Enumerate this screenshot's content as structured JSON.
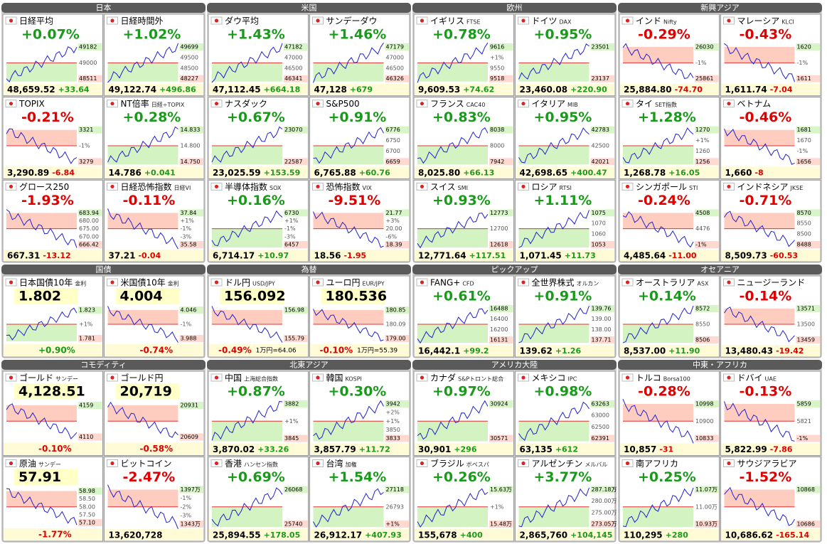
{
  "sections": [
    {
      "title": "日本",
      "cards": [
        {
          "name": "日経平均",
          "pct": "+0.07%",
          "price": "48,659.52",
          "chg": "+33.64",
          "hi": "49182",
          "ticks": [
            "49000"
          ],
          "lo": "48511"
        },
        {
          "name": "日経時間外",
          "pct": "+1.02%",
          "price": "49,122.74",
          "chg": "+496.86",
          "hi": "49699",
          "ticks": [
            "49500",
            "48500"
          ],
          "lo": "48227"
        },
        {
          "name": "TOPIX",
          "pct": "-0.21%",
          "price": "3,290.89",
          "chg": "-6.84",
          "hi": "3321",
          "ticks": [
            "-1%"
          ],
          "lo": "3279"
        },
        {
          "name": "NT倍率",
          "sub": "日経÷TOPIX",
          "pct": "+0.28%",
          "price": "14.786",
          "chg": "+0.041",
          "hi": "14.833",
          "ticks": [
            "14.800"
          ],
          "lo": "14.750"
        },
        {
          "name": "グロース250",
          "pct": "-1.93%",
          "price": "667.31",
          "chg": "-13.12",
          "hi": "683.94",
          "ticks": [
            "680.00",
            "675.00",
            "670.00"
          ],
          "lo": "666.42"
        },
        {
          "name": "日経恐怖指数",
          "sub": "日経VI",
          "pct": "-0.11%",
          "price": "37.21",
          "chg": "-0.04",
          "hi": "37.84",
          "ticks": [
            "+1%",
            "-1%",
            "-3%"
          ],
          "lo": "35.58"
        }
      ]
    },
    {
      "title": "米国",
      "cards": [
        {
          "name": "ダウ平均",
          "pct": "+1.43%",
          "price": "47,112.45",
          "chg": "+664.18",
          "hi": "47182",
          "ticks": [
            "47000",
            "46500"
          ],
          "lo": "46341"
        },
        {
          "name": "サンデーダウ",
          "pct": "+1.46%",
          "price": "47,128",
          "chg": "+679",
          "hi": "47179",
          "ticks": [
            "47000",
            "46500"
          ],
          "lo": "46326"
        },
        {
          "name": "ナスダック",
          "pct": "+0.67%",
          "price": "23,025.59",
          "chg": "+153.59",
          "hi": "23070",
          "ticks": [],
          "lo": "22587"
        },
        {
          "name": "S&P500",
          "pct": "+0.91%",
          "price": "6,765.88",
          "chg": "+60.76",
          "hi": "6776",
          "ticks": [
            "6750",
            "6700"
          ],
          "lo": "6659"
        },
        {
          "name": "半導体指数",
          "sub": "SOX",
          "pct": "+0.16%",
          "price": "6,714.17",
          "chg": "+10.97",
          "hi": "6730",
          "ticks": [
            "+1%",
            "-1%",
            "-3%"
          ],
          "lo": "6457"
        },
        {
          "name": "恐怖指数",
          "sub": "VIX",
          "pct": "-9.51%",
          "price": "18.56",
          "chg": "-1.95",
          "hi": "21.77",
          "ticks": [
            "+3%",
            "20.00",
            "-6%"
          ],
          "lo": "18.39"
        }
      ]
    },
    {
      "title": "欧州",
      "cards": [
        {
          "name": "イギリス",
          "sub": "FTSE",
          "pct": "+0.78%",
          "price": "9,609.53",
          "chg": "+74.62",
          "hi": "9616",
          "ticks": [
            "+1%",
            "9550"
          ],
          "lo": "9518"
        },
        {
          "name": "ドイツ",
          "sub": "DAX",
          "pct": "+0.95%",
          "price": "23,460.08",
          "chg": "+220.90",
          "hi": "23501",
          "ticks": [],
          "lo": "23137"
        },
        {
          "name": "フランス",
          "sub": "CAC40",
          "pct": "+0.83%",
          "price": "8,025.80",
          "chg": "+66.13",
          "hi": "8038",
          "ticks": [
            "8000"
          ],
          "lo": "7942"
        },
        {
          "name": "イタリア",
          "sub": "MIB",
          "pct": "+0.95%",
          "price": "42,698.65",
          "chg": "+400.47",
          "hi": "42783",
          "ticks": [
            "42500"
          ],
          "lo": "42021"
        },
        {
          "name": "スイス",
          "sub": "SMI",
          "pct": "+0.93%",
          "price": "12,771.64",
          "chg": "+117.51",
          "hi": "12773",
          "ticks": [
            "12700"
          ],
          "lo": "12618"
        },
        {
          "name": "ロシア",
          "sub": "RTSI",
          "pct": "+1.11%",
          "price": "1,071.45",
          "chg": "+11.73",
          "hi": "1075",
          "ticks": [
            "1070",
            "1060"
          ],
          "lo": "1053"
        }
      ]
    },
    {
      "title": "新興アジア",
      "cards": [
        {
          "name": "インド",
          "sub": "Nifty",
          "pct": "-0.29%",
          "price": "25,884.80",
          "chg": "-74.70",
          "hi": "26030",
          "ticks": [
            "-1%"
          ],
          "lo": "25861"
        },
        {
          "name": "マレーシア",
          "sub": "KLCI",
          "pct": "-0.43%",
          "price": "1,611.74",
          "chg": "-7.04",
          "hi": "1620",
          "ticks": [
            "-1%"
          ],
          "lo": "1611"
        },
        {
          "name": "タイ",
          "sub": "SET指数",
          "pct": "+1.28%",
          "price": "1,268.78",
          "chg": "+16.05",
          "hi": "1270",
          "ticks": [
            "+1%",
            "1260"
          ],
          "lo": "1256"
        },
        {
          "name": "ベトナム",
          "pct": "-0.46%",
          "price": "1,660",
          "chg": "-8",
          "hi": "1681",
          "ticks": [
            "1670",
            "-1%"
          ],
          "lo": "1656"
        },
        {
          "name": "シンガポール",
          "sub": "STI",
          "pct": "-0.24%",
          "price": "4,485.64",
          "chg": "-11.00",
          "hi": "4508",
          "ticks": [
            "4476"
          ],
          "lo": "-1%"
        },
        {
          "name": "インドネシア",
          "sub": "JKSE",
          "pct": "-0.71%",
          "price": "8,509.73",
          "chg": "-60.53",
          "hi": "8570",
          "ticks": [
            "8550",
            "8500"
          ],
          "lo": "8488"
        }
      ]
    },
    {
      "title": "国債",
      "cards": [
        {
          "name": "日本国債10年",
          "sub": "金利",
          "big": true,
          "price": "1.802",
          "pct": "+0.90%",
          "hi": "1.823",
          "ticks": [
            "+1%"
          ],
          "lo": "1.781"
        },
        {
          "name": "米国債10年",
          "sub": "金利",
          "big": true,
          "price": "4.004",
          "pct": "-0.74%",
          "hi": "4.046",
          "ticks": [
            "-1%"
          ],
          "lo": "3.988"
        }
      ]
    },
    {
      "title": "為替",
      "cards": [
        {
          "name": "ドル円",
          "sub": "USD/JPY",
          "big": true,
          "price": "156.092",
          "pct": "-0.49%",
          "note": "1万円=64.06",
          "hi": "156.98",
          "ticks": [],
          "lo": "155.79"
        },
        {
          "name": "ユーロ円",
          "sub": "EUR/JPY",
          "big": true,
          "price": "180.536",
          "pct": "-0.10%",
          "note": "1万円=55.39",
          "hi": "180.85",
          "ticks": [
            "180.09"
          ],
          "lo": "179.00"
        }
      ]
    },
    {
      "title": "ピックアップ",
      "cards": [
        {
          "name": "FANG+",
          "sub": "CFD",
          "pct": "+0.61%",
          "price": "16,442.1",
          "chg": "+99.2",
          "hi": "16488",
          "ticks": [
            "16400",
            "16200"
          ],
          "lo": "16131"
        },
        {
          "name": "全世界株式",
          "sub": "オルカン",
          "pct": "+0.91%",
          "price": "139.62",
          "chg": "+1.26",
          "hi": "139.76",
          "ticks": [
            "139.00",
            "138.00"
          ],
          "lo": "137.71"
        }
      ]
    },
    {
      "title": "オセアニア",
      "cards": [
        {
          "name": "オーストラリア",
          "sub": "ASX",
          "pct": "+0.14%",
          "price": "8,537.00",
          "chg": "+11.90",
          "hi": "8572",
          "ticks": [
            "8550"
          ],
          "lo": "8506"
        },
        {
          "name": "ニュージーランド",
          "pct": "-0.14%",
          "price": "13,480.43",
          "chg": "-19.42",
          "hi": "13571",
          "ticks": [
            "13500"
          ],
          "lo": "13459"
        }
      ]
    },
    {
      "title": "コモディティ",
      "cards": [
        {
          "name": "ゴールド",
          "sub": "サンデー",
          "big": true,
          "price": "4,128.51",
          "pct": "-0.10%",
          "hi": "4159",
          "ticks": [],
          "lo": "4110"
        },
        {
          "name": "ゴールド円",
          "big": true,
          "price": "20,719",
          "pct": "-0.58%",
          "hi": "20931",
          "ticks": [],
          "lo": "20609"
        },
        {
          "name": "原油",
          "sub": "サンデー",
          "big": true,
          "price": "57.91",
          "pct": "-1.77%",
          "hi": "58.98",
          "ticks": [
            "58.50",
            "58.00",
            "57.50"
          ],
          "lo": "57.10"
        },
        {
          "name": "ビットコイン",
          "pct": "-2.47%",
          "price": "13,620,728",
          "hi": "1397万",
          "ticks": [
            "-1%",
            "-2%",
            "-3%"
          ],
          "lo": "1343万"
        }
      ]
    },
    {
      "title": "北東アジア",
      "cards": [
        {
          "name": "中国",
          "sub": "上海総合指数",
          "pct": "+0.87%",
          "price": "3,870.02",
          "chg": "+33.26",
          "hi": "3882",
          "ticks": [
            "+1%"
          ],
          "lo": "3845"
        },
        {
          "name": "韓国",
          "sub": "KOSPI",
          "pct": "+0.30%",
          "price": "3,857.79",
          "chg": "+11.72",
          "hi": "3942",
          "ticks": [
            "+2%",
            "+1%",
            "3850"
          ],
          "lo": "3833"
        },
        {
          "name": "香港",
          "sub": "ハンセン指数",
          "pct": "+0.69%",
          "price": "25,894.55",
          "chg": "+178.05",
          "hi": "26068",
          "ticks": [],
          "lo": "25740"
        },
        {
          "name": "台湾",
          "sub": "加権",
          "pct": "+1.54%",
          "price": "26,912.17",
          "chg": "+407.93",
          "hi": "27118",
          "ticks": [
            "26793"
          ],
          "lo": "+1%"
        }
      ]
    },
    {
      "title": "アメリカ大陸",
      "cards": [
        {
          "name": "カナダ",
          "sub": "S&Pトロント総合",
          "pct": "+0.97%",
          "price": "30,901",
          "chg": "+296",
          "hi": "30924",
          "ticks": [],
          "lo": "30571"
        },
        {
          "name": "メキシコ",
          "sub": "IPC",
          "pct": "+0.98%",
          "price": "63,135",
          "chg": "+612",
          "hi": "63263",
          "ticks": [
            "63000",
            "62500"
          ],
          "lo": "62391"
        },
        {
          "name": "ブラジル",
          "sub": "ボベスパ",
          "pct": "+0.26%",
          "price": "155,678",
          "chg": "+400",
          "hi": "15.63万",
          "ticks": [
            "+1%"
          ],
          "lo": "15.48万"
        },
        {
          "name": "アルゼンチン",
          "sub": "メルバル",
          "pct": "+3.77%",
          "price": "2,865,760",
          "chg": "+104,145",
          "hi": "287.18万",
          "ticks": [
            "280.00万",
            "275.00万"
          ],
          "lo": "273.05万"
        }
      ]
    },
    {
      "title": "中東・アフリカ",
      "cards": [
        {
          "name": "トルコ",
          "sub": "Borsa100",
          "pct": "-0.28%",
          "price": "10,857",
          "chg": "-31",
          "hi": "10998",
          "ticks": [
            "10900"
          ],
          "lo": "10833"
        },
        {
          "name": "ドバイ",
          "sub": "UAE",
          "pct": "-0.13%",
          "price": "5,822.99",
          "chg": "-7.86",
          "hi": "5859",
          "ticks": [
            "5821"
          ],
          "lo": "-1%"
        },
        {
          "name": "南アフリカ",
          "pct": "+0.25%",
          "price": "110,295",
          "chg": "+280",
          "hi": "11.07万",
          "ticks": [
            "11.00万"
          ],
          "lo": "10.93万"
        },
        {
          "name": "サウジアラビア",
          "pct": "-1.52%",
          "price": "10,686.62",
          "chg": "-165.14",
          "hi": "10868",
          "ticks": [],
          "lo": "10686"
        }
      ]
    }
  ]
}
